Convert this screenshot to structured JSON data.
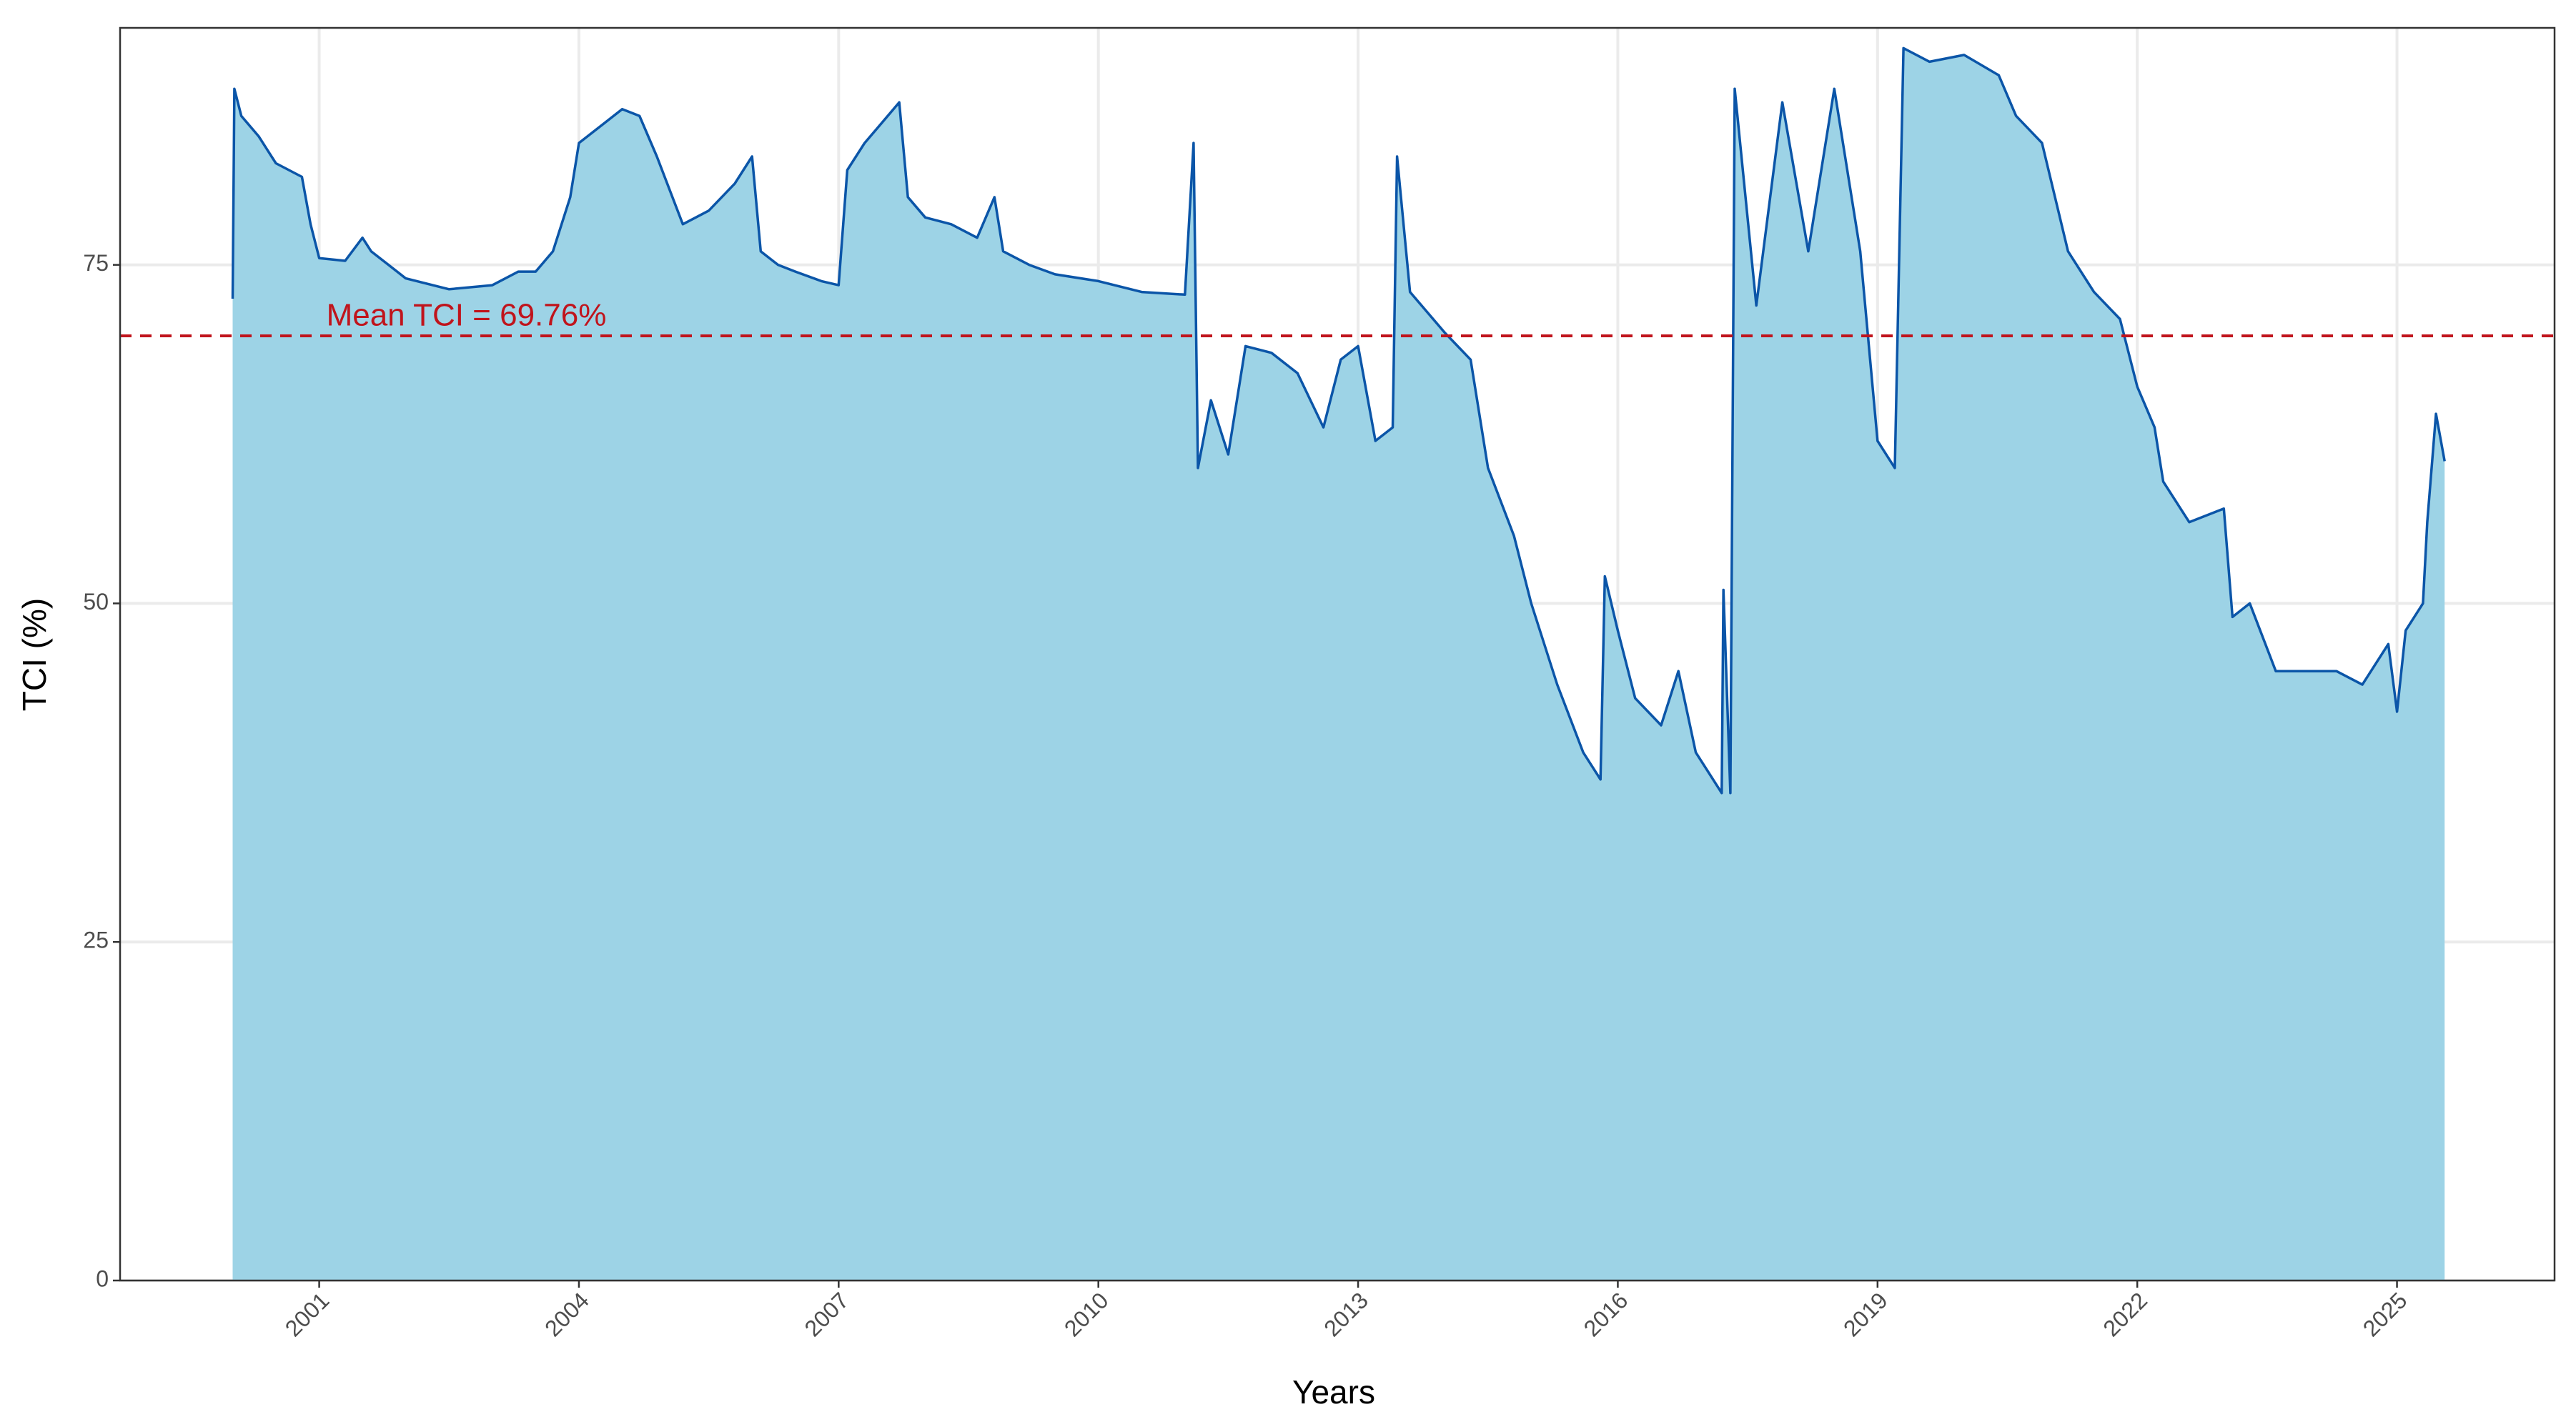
{
  "chart_data": {
    "type": "area",
    "x_label": "Years",
    "y_label": "TCI (%)",
    "x": [
      2000.0,
      2000.02,
      2000.1,
      2000.3,
      2000.5,
      2000.8,
      2000.9,
      2001.0,
      2001.3,
      2001.5,
      2001.6,
      2001.8,
      2002.0,
      2002.5,
      2003.0,
      2003.3,
      2003.5,
      2003.7,
      2003.9,
      2004.0,
      2004.3,
      2004.5,
      2004.7,
      2004.9,
      2005.2,
      2005.5,
      2005.8,
      2006.0,
      2006.1,
      2006.3,
      2006.5,
      2006.8,
      2007.0,
      2007.1,
      2007.3,
      2007.5,
      2007.7,
      2007.8,
      2008.0,
      2008.3,
      2008.6,
      2008.8,
      2008.9,
      2009.2,
      2009.5,
      2010.0,
      2010.5,
      2011.0,
      2011.1,
      2011.15,
      2011.3,
      2011.5,
      2011.7,
      2012.0,
      2012.3,
      2012.6,
      2012.8,
      2013.0,
      2013.2,
      2013.4,
      2013.45,
      2013.6,
      2014.0,
      2014.3,
      2014.5,
      2014.8,
      2015.0,
      2015.3,
      2015.6,
      2015.8,
      2015.85,
      2016.0,
      2016.2,
      2016.5,
      2016.7,
      2016.9,
      2017.1,
      2017.2,
      2017.22,
      2017.3,
      2017.35,
      2017.6,
      2017.9,
      2018.2,
      2018.5,
      2018.8,
      2019.0,
      2019.2,
      2019.3,
      2019.6,
      2020.0,
      2020.4,
      2020.6,
      2020.9,
      2021.2,
      2021.5,
      2021.8,
      2022.0,
      2022.2,
      2022.3,
      2022.6,
      2023.0,
      2023.1,
      2023.3,
      2023.6,
      2024.0,
      2024.3,
      2024.6,
      2024.9,
      2025.0,
      2025.1,
      2025.3,
      2025.35,
      2025.45,
      2025.55
    ],
    "values": [
      72.5,
      88,
      86,
      84.5,
      82.5,
      81.5,
      78,
      75.5,
      75.3,
      77,
      76,
      75,
      74,
      73.2,
      73.5,
      74.5,
      74.5,
      76,
      80,
      84,
      85.5,
      86.5,
      86,
      83,
      78,
      79,
      81,
      83,
      76,
      75,
      74.5,
      73.8,
      73.5,
      82,
      84,
      85.5,
      87,
      80,
      78.5,
      78,
      77,
      80,
      76,
      75,
      74.3,
      73.8,
      73,
      72.8,
      84,
      60,
      65,
      61,
      69,
      68.5,
      67,
      63,
      68,
      69,
      62,
      63,
      83,
      73,
      70,
      68,
      60,
      55,
      50,
      44,
      39,
      37,
      52,
      48,
      43,
      41,
      45,
      39,
      37,
      36,
      51,
      36,
      88,
      72,
      87,
      76,
      88,
      76,
      62,
      60,
      91,
      90,
      90.5,
      89,
      86,
      84,
      76,
      73,
      71,
      66,
      63,
      59,
      56,
      57,
      49,
      50,
      45,
      45,
      45,
      44,
      47,
      42,
      48,
      50,
      56,
      64,
      60.5
    ],
    "color": "#0b55a8",
    "fill_color": "#9dd3e6",
    "mean_line": {
      "value": 69.76,
      "label": "Mean TCI = 69.76%",
      "color": "#c0141c"
    },
    "xlim": [
      1998.7,
      2026.82
    ],
    "xticks": [
      2001,
      2004,
      2007,
      2010,
      2013,
      2016,
      2019,
      2022,
      2025
    ],
    "ylim": [
      0,
      92.5
    ],
    "yticks": [
      0,
      25,
      50,
      75
    ],
    "grid": true
  }
}
